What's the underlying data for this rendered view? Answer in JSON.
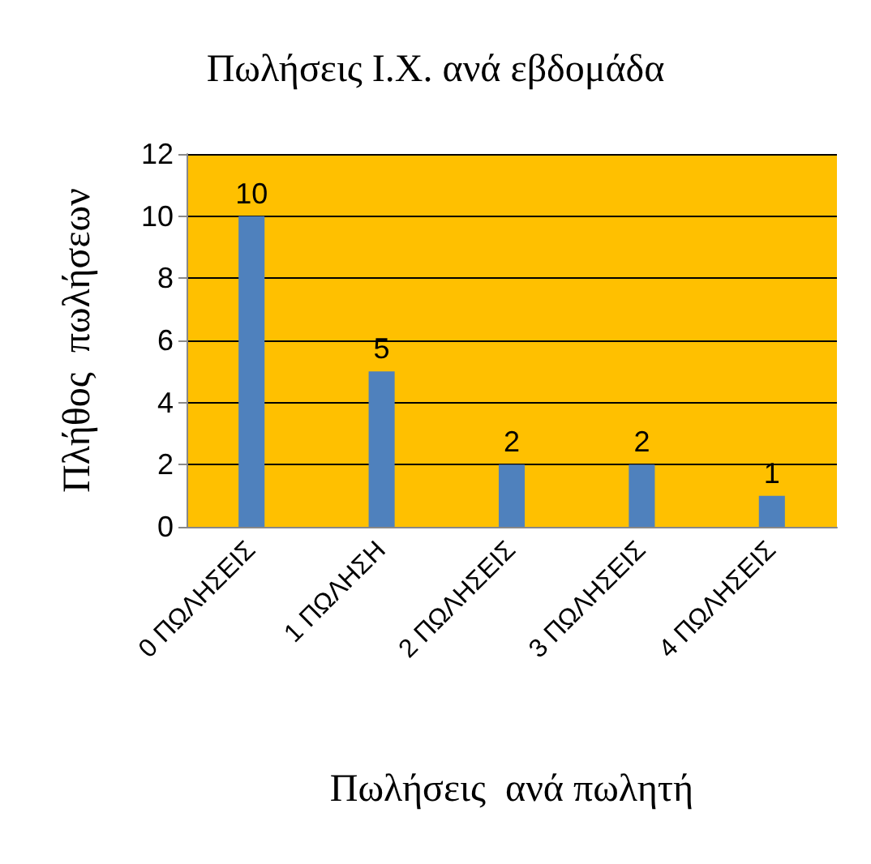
{
  "chart_data": {
    "type": "bar",
    "title": "Πωλήσεις Ι.Χ. ανά εβδομάδα",
    "xlabel": "Πωλήσεις  ανά πωλητή",
    "ylabel": "Πλήθος  πωλήσεων",
    "categories": [
      "0 ΠΩΛΗΣΕΙΣ",
      "1 ΠΩΛΗΣΗ",
      "2 ΠΩΛΗΣΕΙΣ",
      "3 ΠΩΛΗΣΕΙΣ",
      "4 ΠΩΛΗΣΕΙΣ"
    ],
    "values": [
      10,
      5,
      2,
      2,
      1
    ],
    "color": "#4f81bd",
    "ylim": [
      0,
      12
    ],
    "yticks": [
      0,
      2,
      4,
      6,
      8,
      10,
      12
    ],
    "grid": "y",
    "data_labels": true
  }
}
